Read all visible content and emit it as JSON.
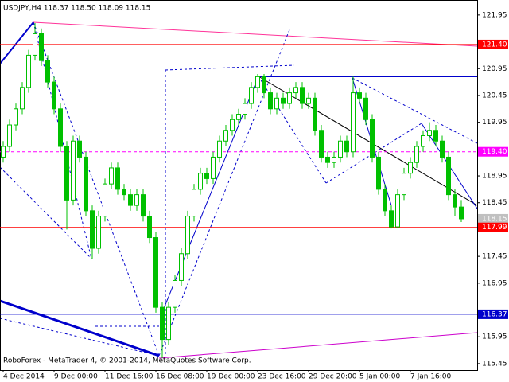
{
  "chart_data": {
    "type": "candlestick",
    "title": "USDJPY,H4  118.37 118.50 118.09 118.15",
    "footer": "RoboForex - MetaTrader 4, © 2001-2014, MetaQuotes Software Corp.",
    "color": "#00c000",
    "x": [
      "4 Dec 2014",
      null,
      null,
      null,
      null,
      null,
      null,
      null,
      "9 Dec 00:00",
      null,
      null,
      null,
      null,
      null,
      null,
      null,
      "11 Dec 16:00",
      null,
      null,
      null,
      null,
      null,
      null,
      null,
      "16 Dec 08:00",
      null,
      null,
      null,
      null,
      null,
      null,
      null,
      "19 Dec 00:00",
      null,
      null,
      null,
      null,
      null,
      null,
      null,
      "23 Dec 16:00",
      null,
      null,
      null,
      null,
      null,
      null,
      null,
      "29 Dec 20:00",
      null,
      null,
      null,
      null,
      null,
      null,
      null,
      "5 Jan 00:00",
      null,
      null,
      null,
      null,
      null,
      null,
      null,
      "7 Jan 16:00",
      null,
      null,
      null,
      null,
      null,
      null,
      null,
      null
    ],
    "open": [
      119.3,
      119.5,
      119.9,
      120.2,
      120.6,
      121.2,
      121.6,
      121.1,
      120.7,
      120.2,
      119.5,
      118.5,
      119.6,
      119.3,
      118.3,
      117.6,
      118.2,
      118.8,
      119.1,
      118.7,
      118.6,
      118.4,
      118.6,
      118.2,
      117.8,
      116.5,
      115.9,
      116.5,
      117.0,
      117.5,
      118.2,
      118.7,
      119.0,
      118.9,
      119.3,
      119.6,
      119.8,
      120.0,
      120.1,
      120.3,
      120.6,
      120.8,
      120.5,
      120.2,
      120.4,
      120.3,
      120.5,
      120.6,
      120.3,
      120.4,
      119.8,
      119.3,
      119.2,
      119.3,
      119.6,
      119.4,
      120.5,
      120.4,
      120.0,
      119.3,
      118.7,
      118.3,
      118.0,
      118.6,
      119.0,
      119.2,
      119.5,
      119.7,
      119.8,
      119.6,
      119.3,
      118.6,
      118.37
    ],
    "high": [
      119.6,
      120.0,
      120.3,
      120.7,
      121.3,
      121.8,
      121.7,
      121.2,
      120.8,
      120.3,
      119.6,
      119.7,
      119.7,
      119.4,
      118.4,
      118.3,
      118.9,
      119.2,
      119.2,
      118.8,
      118.7,
      118.7,
      118.7,
      118.3,
      117.9,
      116.6,
      116.6,
      117.1,
      117.6,
      118.3,
      118.8,
      119.1,
      119.1,
      119.4,
      119.7,
      119.9,
      120.1,
      120.2,
      120.4,
      120.7,
      120.85,
      120.85,
      120.6,
      120.5,
      120.5,
      120.6,
      120.7,
      120.7,
      120.5,
      120.5,
      119.9,
      119.4,
      119.4,
      119.7,
      119.7,
      120.8,
      120.6,
      120.5,
      120.1,
      119.4,
      118.8,
      118.4,
      118.7,
      119.1,
      119.3,
      119.6,
      119.8,
      119.95,
      119.9,
      119.7,
      119.4,
      118.7,
      118.5
    ],
    "low": [
      119.2,
      119.4,
      119.8,
      120.1,
      120.5,
      121.1,
      121.0,
      120.6,
      120.1,
      119.4,
      117.95,
      118.4,
      119.2,
      118.2,
      117.4,
      117.5,
      118.1,
      118.7,
      118.6,
      118.5,
      118.3,
      118.3,
      118.1,
      117.7,
      116.4,
      115.55,
      115.8,
      116.4,
      116.9,
      117.4,
      118.1,
      118.6,
      118.8,
      118.8,
      119.2,
      119.5,
      119.7,
      119.9,
      120.0,
      120.2,
      120.5,
      120.4,
      120.1,
      120.1,
      120.2,
      120.2,
      120.4,
      120.2,
      120.2,
      119.7,
      119.2,
      119.1,
      119.1,
      119.2,
      119.3,
      119.3,
      120.3,
      119.9,
      119.2,
      118.6,
      118.2,
      117.97,
      117.98,
      118.5,
      118.9,
      119.1,
      119.4,
      119.6,
      119.5,
      119.2,
      118.5,
      118.2,
      118.09
    ],
    "close": [
      119.5,
      119.9,
      120.2,
      120.6,
      121.2,
      121.6,
      121.1,
      120.7,
      120.2,
      119.5,
      118.5,
      119.6,
      119.3,
      118.3,
      117.6,
      118.2,
      118.8,
      119.1,
      118.7,
      118.6,
      118.4,
      118.6,
      118.2,
      117.8,
      116.5,
      115.9,
      116.5,
      117.0,
      117.5,
      118.2,
      118.7,
      119.0,
      118.9,
      119.3,
      119.6,
      119.8,
      120.0,
      120.1,
      120.3,
      120.6,
      120.8,
      120.5,
      120.2,
      120.4,
      120.3,
      120.5,
      120.6,
      120.3,
      120.4,
      119.8,
      119.3,
      119.2,
      119.3,
      119.6,
      119.4,
      120.5,
      120.4,
      120.0,
      119.3,
      118.7,
      118.3,
      118.0,
      118.6,
      119.0,
      119.2,
      119.5,
      119.7,
      119.8,
      119.6,
      119.3,
      118.6,
      118.37,
      118.15
    ],
    "ylim": [
      115.33,
      122.23
    ],
    "yticks": [
      121.95,
      120.95,
      120.45,
      119.95,
      118.95,
      118.45,
      117.45,
      116.95,
      115.95,
      115.45
    ],
    "levels": [
      {
        "value": {
          "value": 121.4,
          "label": "121.40"
        },
        "color": "#ff0000"
      },
      {
        "value": {
          "value": 119.4,
          "label": "119.40"
        },
        "color": "#ff00ff",
        "dashed": true
      },
      {
        "value": 118.15,
        "color": "#c0c0c0",
        "line": false
      },
      {
        "value": 117.99,
        "color": "#ff0000"
      },
      {
        "value": 116.37,
        "color": "#0000cc"
      }
    ]
  }
}
